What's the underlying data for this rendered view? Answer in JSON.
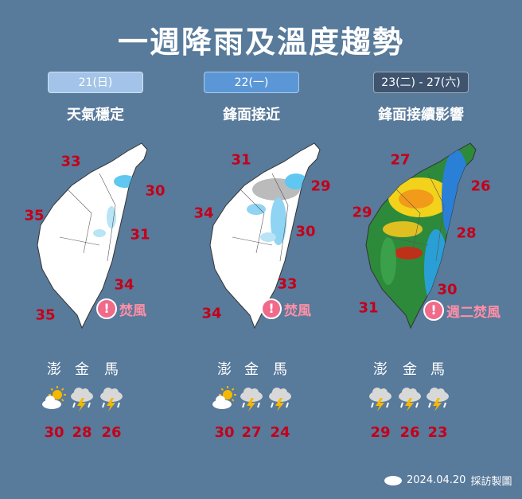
{
  "title": "一週降雨及溫度趨勢",
  "panels": [
    {
      "date": "21(日)",
      "date_color": "#a3c4e8",
      "summary": "天氣穩定",
      "warning": "焚風",
      "temps": [
        "33",
        "30",
        "35",
        "31",
        "34",
        "35"
      ],
      "islands": [
        {
          "name": "澎",
          "temp": "30",
          "icon": "partly-sunny"
        },
        {
          "name": "金",
          "temp": "28",
          "icon": "thunderstorm"
        },
        {
          "name": "馬",
          "temp": "26",
          "icon": "thunderstorm"
        }
      ]
    },
    {
      "date": "22(一)",
      "date_color": "#5b97d6",
      "summary": "鋒面接近",
      "warning": "焚風",
      "temps": [
        "31",
        "29",
        "34",
        "30",
        "33",
        "34"
      ],
      "islands": [
        {
          "name": "澎",
          "temp": "30",
          "icon": "partly-sunny"
        },
        {
          "name": "金",
          "temp": "27",
          "icon": "thunderstorm"
        },
        {
          "name": "馬",
          "temp": "24",
          "icon": "thunderstorm"
        }
      ]
    },
    {
      "date": "23(二) - 27(六)",
      "date_color": "#3f546e",
      "summary": "鋒面接續影響",
      "warning": "週二焚風",
      "temps": [
        "27",
        "26",
        "29",
        "28",
        "30",
        "31"
      ],
      "islands": [
        {
          "name": "澎",
          "temp": "29",
          "icon": "thunderstorm"
        },
        {
          "name": "金",
          "temp": "26",
          "icon": "thunderstorm"
        },
        {
          "name": "馬",
          "temp": "23",
          "icon": "thunderstorm"
        }
      ]
    }
  ],
  "footer": {
    "date": "2024.04.20",
    "label": "採訪製圖"
  },
  "colors": {
    "background": "#587a9b",
    "temperature": "#c4001a",
    "warning": "#f06a8a"
  }
}
